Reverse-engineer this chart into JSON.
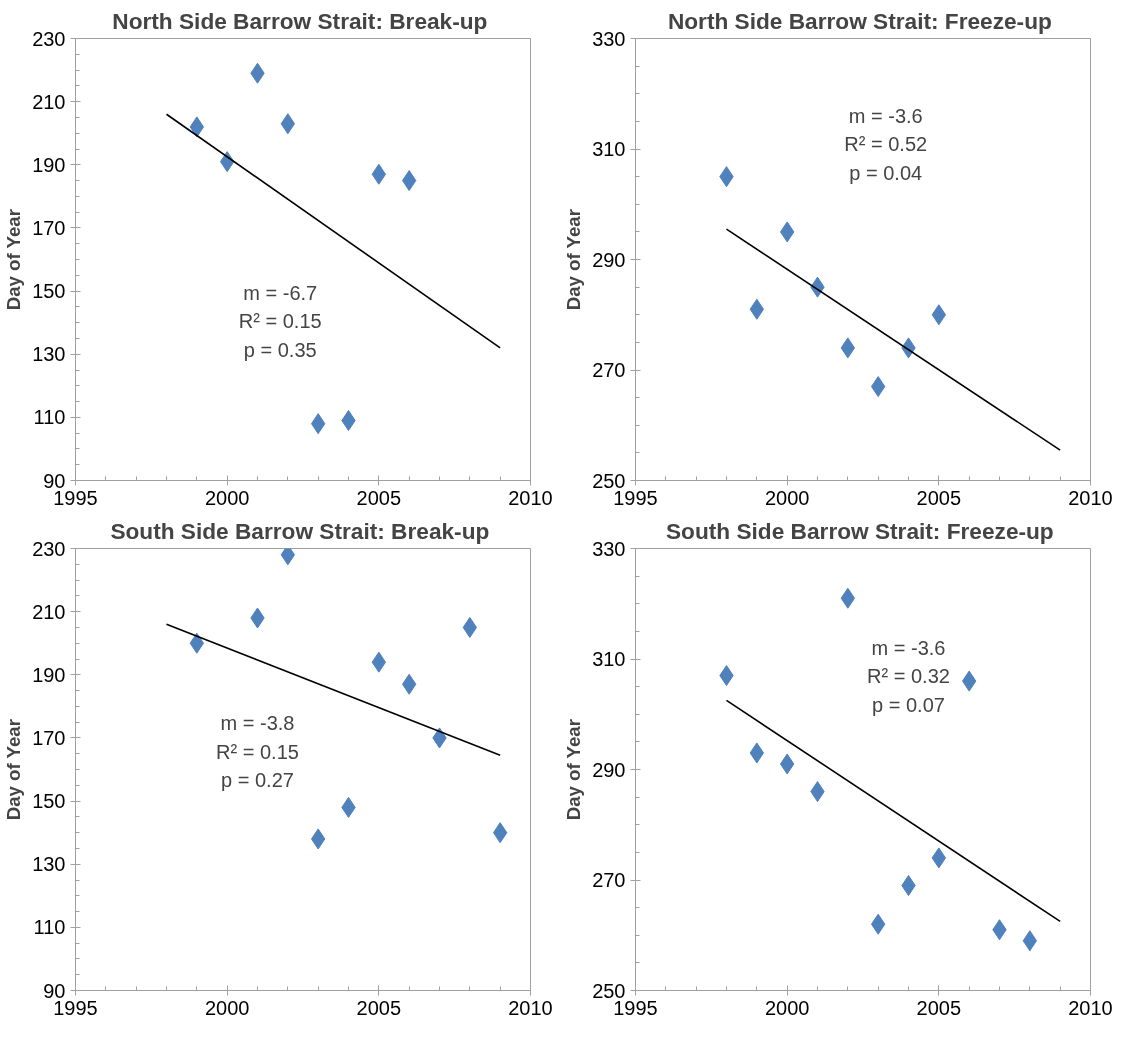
{
  "chart_data": [
    {
      "type": "scatter",
      "title": "North Side Barrow Strait:  Break-up",
      "ylabel": "Day of Year",
      "marker": "diamond",
      "xlim": [
        1995,
        2010
      ],
      "xticks": [
        1995,
        2000,
        2005,
        2010
      ],
      "ylim": [
        90,
        230
      ],
      "yticks": [
        90,
        110,
        130,
        150,
        170,
        190,
        210,
        230
      ],
      "annotations": [
        "m = -6.7\nR² = 0.15\np = 0.35"
      ],
      "series": [
        {
          "color": "#4f81bd",
          "x": [
            1999,
            2000,
            2001,
            2002,
            2003,
            2004,
            2005,
            2006
          ],
          "values": [
            202,
            191,
            219,
            203,
            108,
            109,
            187,
            185
          ]
        },
        {
          "type": "line",
          "marker": "none",
          "color": "#000000",
          "x": [
            1998,
            2009
          ],
          "values": [
            206,
            132
          ]
        }
      ]
    },
    {
      "type": "scatter",
      "title": "North Side Barrow Strait:  Freeze-up",
      "ylabel": "Day of Year",
      "marker": "diamond",
      "xlim": [
        1995,
        2010
      ],
      "xticks": [
        1995,
        2000,
        2005,
        2010
      ],
      "ylim": [
        250,
        330
      ],
      "yticks": [
        250,
        270,
        290,
        310,
        330
      ],
      "annotations": [
        "m = -3.6\nR² = 0.52\np = 0.04"
      ],
      "series": [
        {
          "color": "#4f81bd",
          "x": [
            1998,
            1999,
            2000,
            2001,
            2002,
            2003,
            2004,
            2005
          ],
          "values": [
            305,
            281,
            295,
            285,
            274,
            267,
            274,
            280
          ]
        },
        {
          "type": "line",
          "marker": "none",
          "color": "#000000",
          "x": [
            1998,
            2009
          ],
          "values": [
            295.5,
            255.5
          ]
        }
      ]
    },
    {
      "type": "scatter",
      "title": "South Side Barrow Strait:  Break-up",
      "ylabel": "Day of Year",
      "marker": "diamond",
      "xlim": [
        1995,
        2010
      ],
      "xticks": [
        1995,
        2000,
        2005,
        2010
      ],
      "ylim": [
        90,
        230
      ],
      "yticks": [
        90,
        110,
        130,
        150,
        170,
        190,
        210,
        230
      ],
      "annotations": [
        "m = -3.8\nR² = 0.15\np = 0.27"
      ],
      "series": [
        {
          "color": "#4f81bd",
          "x": [
            1999,
            2001,
            2002,
            2003,
            2004,
            2005,
            2006,
            2007,
            2008,
            2009
          ],
          "values": [
            200,
            208,
            228,
            138,
            148,
            194,
            187,
            170,
            205,
            140
          ]
        },
        {
          "type": "line",
          "marker": "none",
          "color": "#000000",
          "x": [
            1998,
            2009
          ],
          "values": [
            206,
            164.5
          ]
        }
      ]
    },
    {
      "type": "scatter",
      "title": "South Side Barrow Strait:  Freeze-up",
      "ylabel": "Day of Year",
      "marker": "diamond",
      "xlim": [
        1995,
        2010
      ],
      "xticks": [
        1995,
        2000,
        2005,
        2010
      ],
      "ylim": [
        250,
        330
      ],
      "yticks": [
        250,
        270,
        290,
        310,
        330
      ],
      "annotations": [
        "m = -3.6\nR² = 0.32\np = 0.07"
      ],
      "series": [
        {
          "color": "#4f81bd",
          "x": [
            1998,
            1999,
            2000,
            2001,
            2002,
            2003,
            2004,
            2005,
            2006,
            2007,
            2008
          ],
          "values": [
            307,
            293,
            291,
            286,
            321,
            262,
            269,
            274,
            306,
            261,
            259
          ]
        },
        {
          "type": "line",
          "marker": "none",
          "color": "#000000",
          "x": [
            1998,
            2009
          ],
          "values": [
            302.5,
            262.5
          ]
        }
      ]
    }
  ]
}
